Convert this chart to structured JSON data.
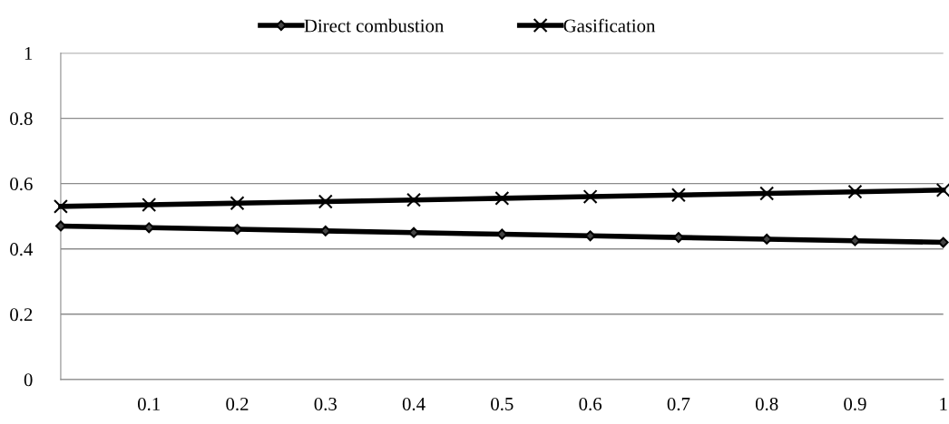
{
  "chart_data": {
    "type": "line",
    "categories": [
      null,
      "0.1",
      "0.2",
      "0.3",
      "0.4",
      "0.5",
      "0.6",
      "0.7",
      "0.8",
      "0.9",
      "1"
    ],
    "series": [
      {
        "name": "Direct combustion",
        "color": "#000000",
        "marker": "diamond",
        "values": [
          0.47,
          0.465,
          0.46,
          0.455,
          0.45,
          0.445,
          0.44,
          0.435,
          0.43,
          0.425,
          0.42
        ]
      },
      {
        "name": "Gasification",
        "color": "#000000",
        "marker": "cross",
        "values": [
          0.53,
          0.535,
          0.54,
          0.545,
          0.55,
          0.555,
          0.56,
          0.565,
          0.57,
          0.575,
          0.58
        ]
      }
    ],
    "ylim": [
      0,
      1
    ],
    "yticks": [
      0,
      0.2,
      0.4,
      0.6,
      0.8,
      1
    ],
    "grid": "y",
    "legend": "top",
    "line_style": "solid"
  }
}
